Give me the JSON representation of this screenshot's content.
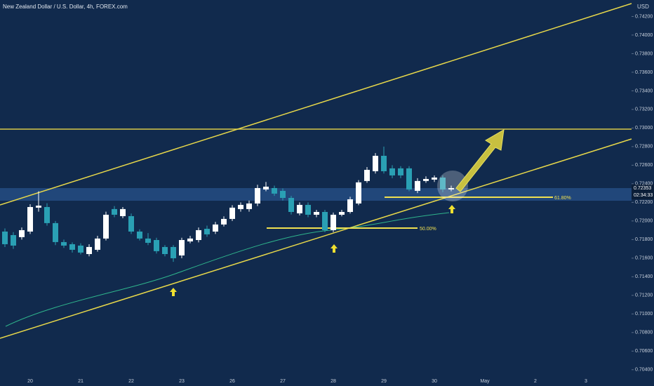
{
  "chart_data": {
    "type": "candlestick",
    "title": "New Zealand Dollar / U.S. Dollar, 4h, FOREX.com",
    "axis_unit": "USD",
    "up_color": "#ffffff",
    "down_color": "#2aa0b4",
    "ylim": [
      0.70338,
      0.74377
    ],
    "yticks": [
      {
        "value": 0.704,
        "label": "0.70400"
      },
      {
        "value": 0.706,
        "label": "0.70600"
      },
      {
        "value": 0.708,
        "label": "0.70800"
      },
      {
        "value": 0.71,
        "label": "0.71000"
      },
      {
        "value": 0.712,
        "label": "0.71200"
      },
      {
        "value": 0.714,
        "label": "0.71400"
      },
      {
        "value": 0.716,
        "label": "0.71600"
      },
      {
        "value": 0.718,
        "label": "0.71800"
      },
      {
        "value": 0.72,
        "label": "0.72000"
      },
      {
        "value": 0.722,
        "label": "0.72200"
      },
      {
        "value": 0.724,
        "label": "0.72400"
      },
      {
        "value": 0.726,
        "label": "0.72600"
      },
      {
        "value": 0.728,
        "label": "0.72800"
      },
      {
        "value": 0.73,
        "label": "0.73000"
      },
      {
        "value": 0.732,
        "label": "0.73200"
      },
      {
        "value": 0.734,
        "label": "0.73400"
      },
      {
        "value": 0.736,
        "label": "0.73600"
      },
      {
        "value": 0.738,
        "label": "0.73800"
      },
      {
        "value": 0.74,
        "label": "0.74000"
      },
      {
        "value": 0.742,
        "label": "0.74200"
      }
    ],
    "x_labels": [
      "20",
      "21",
      "22",
      "23",
      "26",
      "27",
      "28",
      "29",
      "30",
      "May",
      "2",
      "3"
    ],
    "candles": [
      [
        0.71886,
        0.7192,
        0.7172,
        0.7175
      ],
      [
        0.71848,
        0.7188,
        0.717,
        0.71735
      ],
      [
        0.71826,
        0.7193,
        0.718,
        0.71901
      ],
      [
        0.71886,
        0.7218,
        0.7186,
        0.7215
      ],
      [
        0.72143,
        0.7232,
        0.721,
        0.72165
      ],
      [
        0.7215,
        0.7219,
        0.7195,
        0.71977
      ],
      [
        0.71977,
        0.72,
        0.7174,
        0.71773
      ],
      [
        0.71773,
        0.718,
        0.7171,
        0.71735
      ],
      [
        0.7175,
        0.7177,
        0.7166,
        0.7169
      ],
      [
        0.71735,
        0.7176,
        0.7164,
        0.7166
      ],
      [
        0.71644,
        0.7175,
        0.7162,
        0.7172
      ],
      [
        0.7169,
        0.7184,
        0.7167,
        0.71811
      ],
      [
        0.71811,
        0.721,
        0.7179,
        0.72067
      ],
      [
        0.72128,
        0.7216,
        0.7204,
        0.72067
      ],
      [
        0.72052,
        0.7215,
        0.7203,
        0.72128
      ],
      [
        0.72052,
        0.7208,
        0.7186,
        0.71886
      ],
      [
        0.71886,
        0.7191,
        0.7179,
        0.71811
      ],
      [
        0.71811,
        0.7187,
        0.7174,
        0.71765
      ],
      [
        0.71795,
        0.7182,
        0.7165,
        0.71675
      ],
      [
        0.7172,
        0.7174,
        0.7162,
        0.71644
      ],
      [
        0.7172,
        0.7174,
        0.7156,
        0.71599
      ],
      [
        0.71629,
        0.7182,
        0.716,
        0.71795
      ],
      [
        0.7178,
        0.7184,
        0.7176,
        0.71811
      ],
      [
        0.71795,
        0.7193,
        0.7177,
        0.71901
      ],
      [
        0.71916,
        0.7195,
        0.7183,
        0.71856
      ],
      [
        0.71886,
        0.7199,
        0.7186,
        0.71962
      ],
      [
        0.71962,
        0.7205,
        0.7194,
        0.72022
      ],
      [
        0.72022,
        0.7217,
        0.72,
        0.72143
      ],
      [
        0.72128,
        0.722,
        0.721,
        0.72173
      ],
      [
        0.72128,
        0.7222,
        0.721,
        0.72188
      ],
      [
        0.72188,
        0.7239,
        0.7216,
        0.72354
      ],
      [
        0.72339,
        0.7242,
        0.7232,
        0.72369
      ],
      [
        0.72354,
        0.7238,
        0.7227,
        0.72294
      ],
      [
        0.72324,
        0.7235,
        0.7222,
        0.72248
      ],
      [
        0.72248,
        0.7227,
        0.7207,
        0.72097
      ],
      [
        0.72082,
        0.722,
        0.7206,
        0.72173
      ],
      [
        0.72173,
        0.722,
        0.7204,
        0.72067
      ],
      [
        0.72067,
        0.7212,
        0.7204,
        0.72097
      ],
      [
        0.72097,
        0.7212,
        0.7188,
        0.71901
      ],
      [
        0.71901,
        0.7209,
        0.7188,
        0.72067
      ],
      [
        0.72067,
        0.7212,
        0.7205,
        0.72097
      ],
      [
        0.72097,
        0.7226,
        0.7208,
        0.72233
      ],
      [
        0.72188,
        0.7244,
        0.7217,
        0.72415
      ],
      [
        0.7243,
        0.7258,
        0.7241,
        0.7255
      ],
      [
        0.72535,
        0.7273,
        0.7251,
        0.72701
      ],
      [
        0.72701,
        0.728,
        0.7251,
        0.72535
      ],
      [
        0.72566,
        0.726,
        0.7246,
        0.7249
      ],
      [
        0.72566,
        0.7259,
        0.7246,
        0.7249
      ],
      [
        0.72566,
        0.7259,
        0.7232,
        0.72339
      ],
      [
        0.72324,
        0.7246,
        0.723,
        0.7243
      ],
      [
        0.7243,
        0.7248,
        0.7241,
        0.72452
      ],
      [
        0.72445,
        0.7249,
        0.7242,
        0.72467
      ],
      [
        0.72467,
        0.7249,
        0.7231,
        0.72339
      ],
      [
        0.72339,
        0.7238,
        0.7232,
        0.72354
      ]
    ],
    "fib_labels": [
      "61.80%",
      "50.00%"
    ],
    "last_price_label": "0.72353",
    "countdown": "02:34:33"
  }
}
